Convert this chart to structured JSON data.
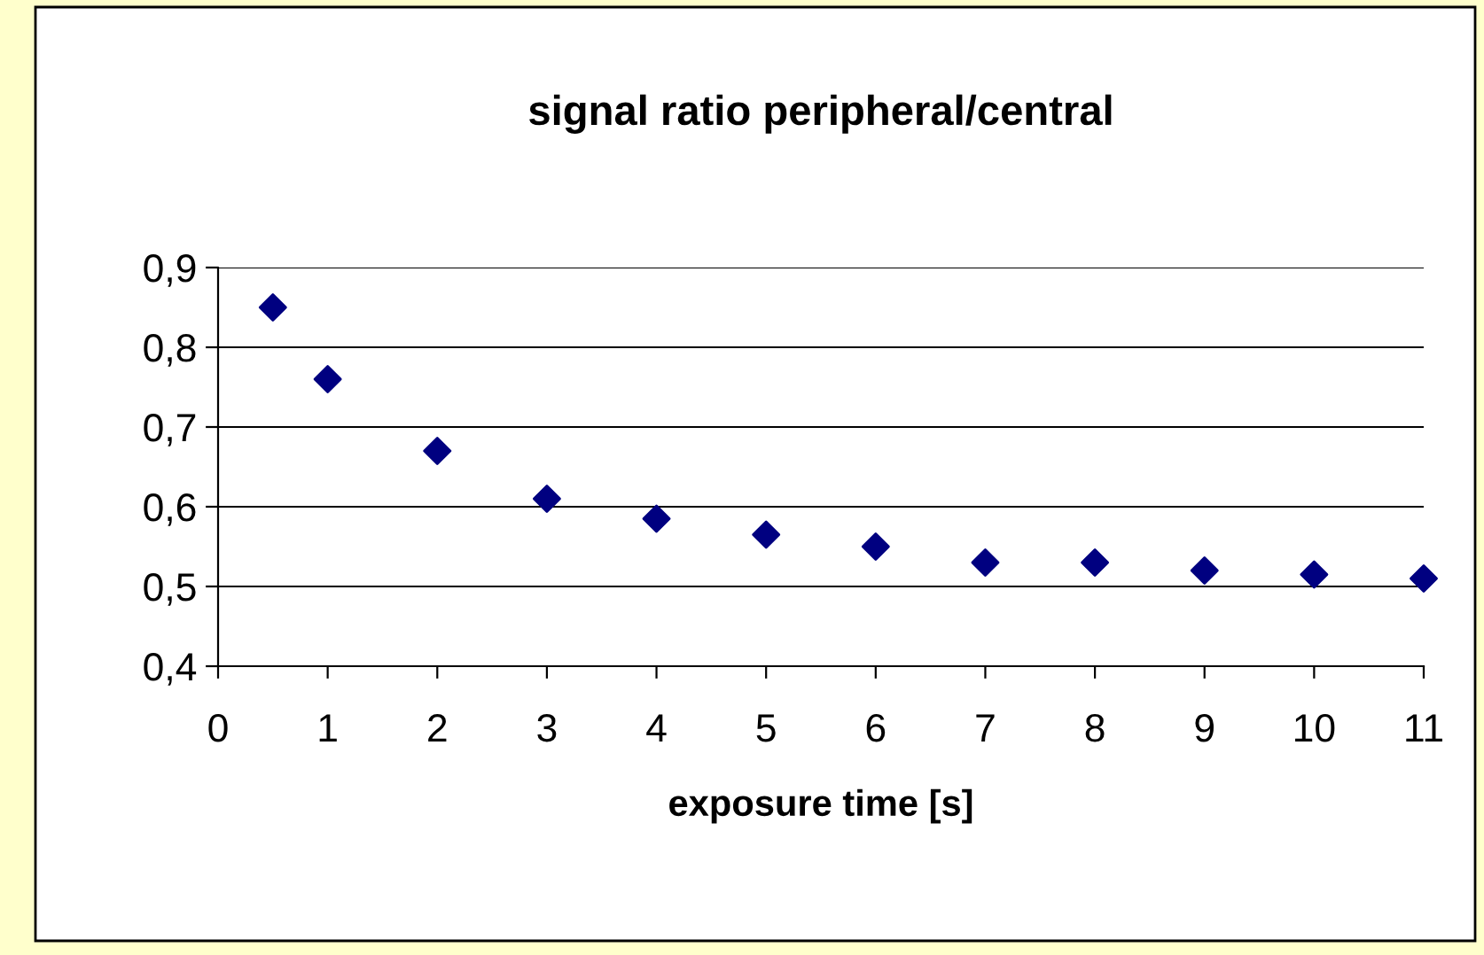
{
  "chart_data": {
    "type": "scatter",
    "title": "signal ratio peripheral/central",
    "xlabel": "exposure time [s]",
    "x": [
      0.5,
      1,
      2,
      3,
      4,
      5,
      6,
      7,
      8,
      9,
      10,
      11
    ],
    "series": [
      {
        "color": "#000080",
        "values": [
          0.85,
          0.76,
          0.67,
          0.61,
          0.585,
          0.565,
          0.55,
          0.53,
          0.53,
          0.52,
          0.515,
          0.51
        ]
      }
    ],
    "xlim": [
      0,
      11
    ],
    "xticks": [
      0,
      1,
      2,
      3,
      4,
      5,
      6,
      7,
      8,
      9,
      10,
      11
    ],
    "ylim": [
      0.4,
      0.9
    ],
    "yticks": [
      {
        "value": 0.4,
        "label": "0,4"
      },
      {
        "value": 0.5,
        "label": "0,5"
      },
      {
        "value": 0.6,
        "label": "0,6"
      },
      {
        "value": 0.7,
        "label": "0,7"
      },
      {
        "value": 0.8,
        "label": "0,8"
      },
      {
        "value": 0.9,
        "label": "0,9"
      }
    ],
    "grid": "y",
    "legend": false,
    "marker": "diamond"
  }
}
